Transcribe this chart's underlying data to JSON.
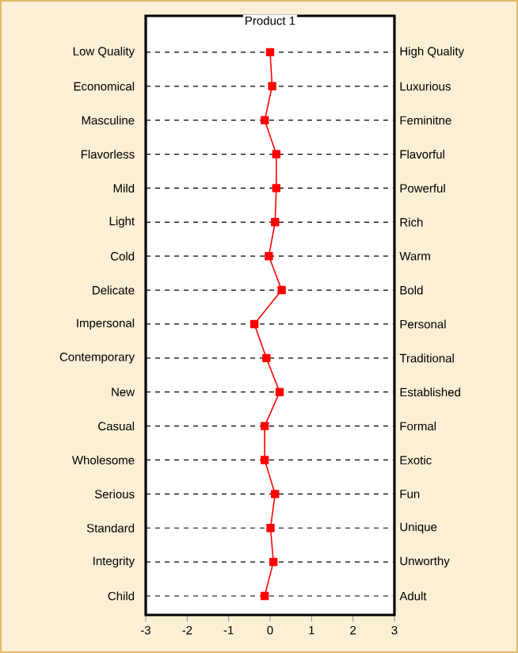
{
  "chart_data": {
    "type": "line",
    "title": "Product 1",
    "orientation": "horizontal",
    "categories": [
      "Low Quality",
      "Economical",
      "Masculine",
      "Flavorless",
      "Mild",
      "Light",
      "Cold",
      "Delicate",
      "Impersonal",
      "Contemporary",
      "New",
      "Casual",
      "Wholesome",
      "Serious",
      "Standard",
      "Integrity",
      "Child"
    ],
    "y2_categories": [
      "High Quality",
      "Luxurious",
      "Feminitne",
      "Flavorful",
      "Powerful",
      "Rich",
      "Warm",
      "Bold",
      "Personal",
      "Traditional",
      "Established",
      "Formal",
      "Exotic",
      "Fun",
      "Unique",
      "Unworthy",
      "Adult"
    ],
    "values": [
      0.0,
      0.05,
      -0.13,
      0.15,
      0.15,
      0.12,
      -0.03,
      0.28,
      -0.38,
      -0.09,
      0.23,
      -0.13,
      -0.13,
      0.12,
      0.01,
      0.08,
      -0.13
    ],
    "color": "#ff0000",
    "marker": "square",
    "line_style": "solid",
    "grid": "y",
    "xlim": [
      -3,
      3
    ],
    "xticks": [
      -3,
      -2,
      -1,
      0,
      1,
      2,
      3
    ]
  }
}
